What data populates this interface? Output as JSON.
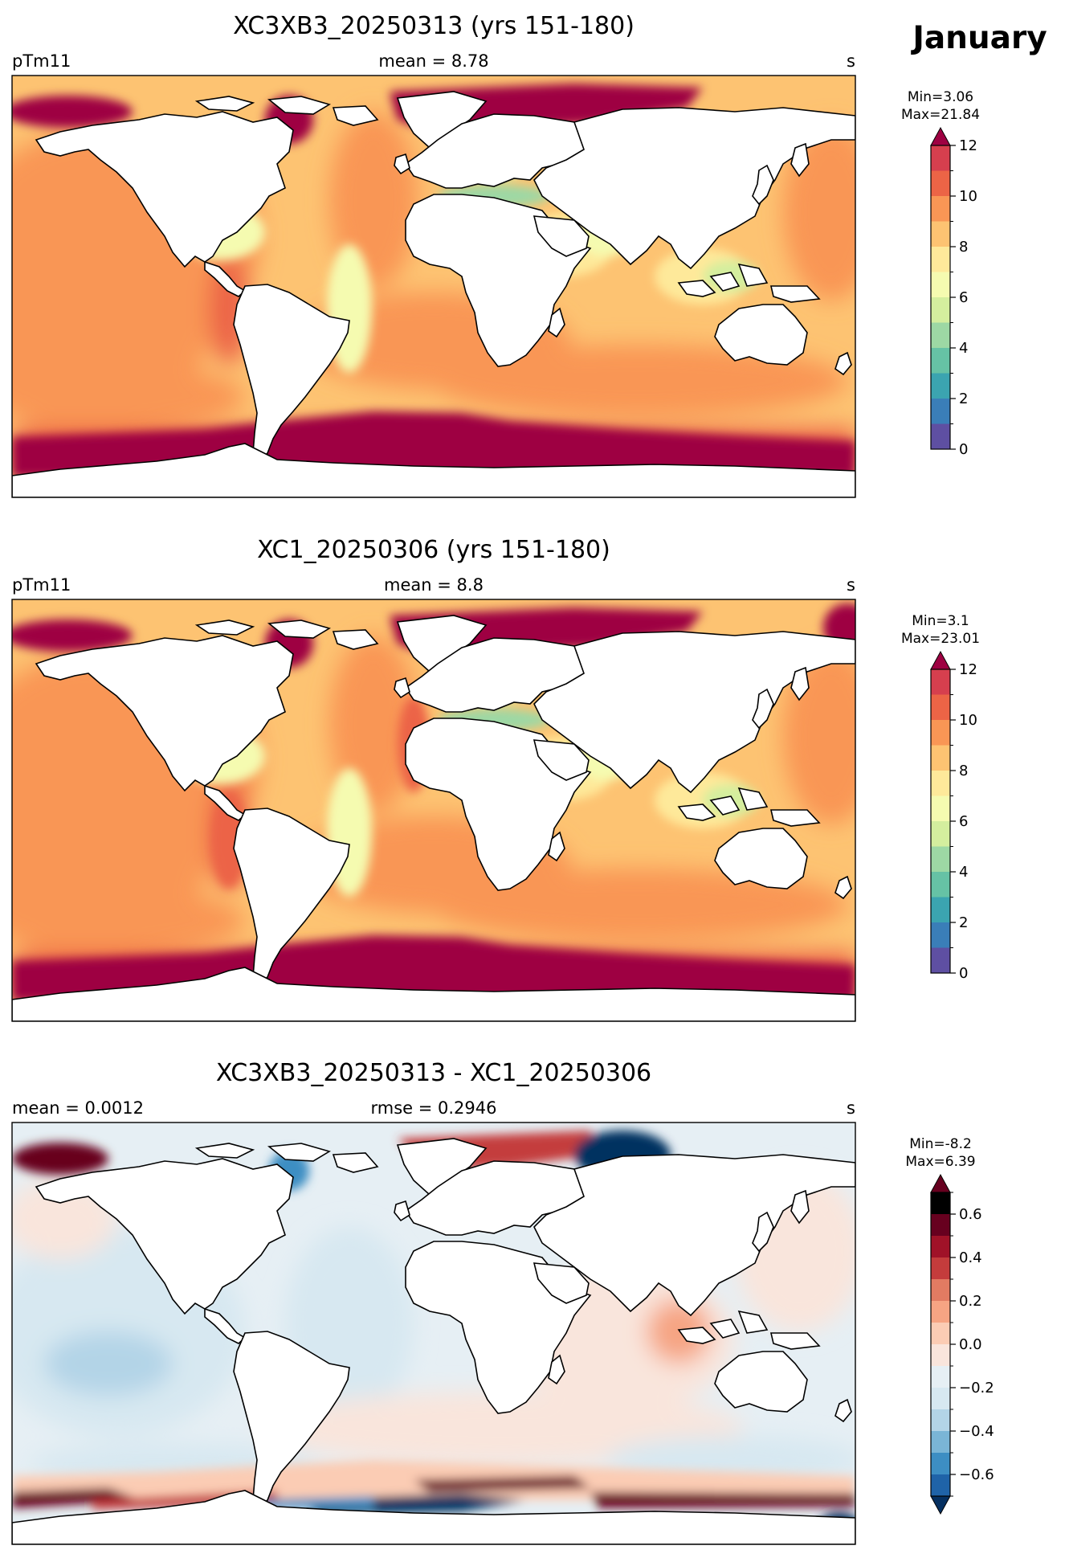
{
  "month": "January",
  "palettes": {
    "spectral": [
      "#5e4fa2",
      "#3a7eb8",
      "#3ba4b0",
      "#66c2a5",
      "#9dd8a4",
      "#d4ee9e",
      "#f5fbb0",
      "#fee99a",
      "#fdc372",
      "#f99655",
      "#ec6446",
      "#d63f4e",
      "#9e0142"
    ],
    "rdbu": [
      "#053061",
      "#1f63a8",
      "#3d8ec3",
      "#7ab5d6",
      "#b3d4e7",
      "#d7e8f1",
      "#e6eff4",
      "#f9e5dc",
      "#fbccb4",
      "#f6a483",
      "#e27b62",
      "#c43c3c",
      "#a01228",
      "#67001f"
    ]
  },
  "panels": [
    {
      "title": "XC3XB3_20250313 (yrs 151-180)",
      "left_label": "pTm11",
      "center_label": "mean = 8.78",
      "right_label": "s",
      "minmax_line1": "Min=3.06",
      "minmax_line2": "Max=21.84",
      "field": "a",
      "colorbar": {
        "palette": "spectral",
        "levels": [
          0,
          1,
          2,
          3,
          4,
          5,
          6,
          7,
          8,
          9,
          10,
          11,
          12
        ],
        "extend": "max",
        "ticks": [
          0,
          2,
          4,
          6,
          8,
          10,
          12
        ],
        "tick_labels": [
          "0",
          "2",
          "4",
          "6",
          "8",
          "10",
          "12"
        ]
      }
    },
    {
      "title": "XC1_20250306 (yrs 151-180)",
      "left_label": "pTm11",
      "center_label": "mean = 8.8",
      "right_label": "s",
      "minmax_line1": "Min=3.1",
      "minmax_line2": "Max=23.01",
      "field": "b",
      "colorbar": {
        "palette": "spectral",
        "levels": [
          0,
          1,
          2,
          3,
          4,
          5,
          6,
          7,
          8,
          9,
          10,
          11,
          12
        ],
        "extend": "max",
        "ticks": [
          0,
          2,
          4,
          6,
          8,
          10,
          12
        ],
        "tick_labels": [
          "0",
          "2",
          "4",
          "6",
          "8",
          "10",
          "12"
        ]
      }
    },
    {
      "title": "XC3XB3_20250313 - XC1_20250306",
      "left_label": "mean = 0.0012",
      "center_label": "rmse = 0.2946",
      "right_label": "s",
      "minmax_line1": "Min=-8.2",
      "minmax_line2": "Max=6.39",
      "field": "diff",
      "colorbar": {
        "palette": "rdbu",
        "levels": [
          -0.7,
          -0.6,
          -0.5,
          -0.4,
          -0.3,
          -0.2,
          -0.1,
          0.0,
          0.1,
          0.2,
          0.3,
          0.4,
          0.5,
          0.6,
          0.7
        ],
        "extend": "both",
        "ticks": [
          -0.6,
          -0.4,
          -0.2,
          0.0,
          0.2,
          0.4,
          0.6
        ],
        "tick_labels": [
          "−0.6",
          "−0.4",
          "−0.2",
          "0.0",
          "0.2",
          "0.4",
          "0.6"
        ]
      }
    }
  ],
  "chart_data": {
    "type": "heatmap",
    "projection": "global lat-lon map, Pacific-centered",
    "variable": "pTm11",
    "units": "s",
    "maps": [
      {
        "title": "XC3XB3_20250313 (yrs 151-180)",
        "mean": 8.78,
        "min": 3.06,
        "max": 21.84,
        "range": [
          0,
          12
        ]
      },
      {
        "title": "XC1_20250306 (yrs 151-180)",
        "mean": 8.8,
        "min": 3.1,
        "max": 23.01,
        "range": [
          0,
          12
        ]
      },
      {
        "title": "XC3XB3_20250313 - XC1_20250306",
        "mean": 0.0012,
        "rmse": 0.2946,
        "min": -8.2,
        "max": 6.39,
        "range": [
          -0.7,
          0.7
        ]
      }
    ]
  }
}
